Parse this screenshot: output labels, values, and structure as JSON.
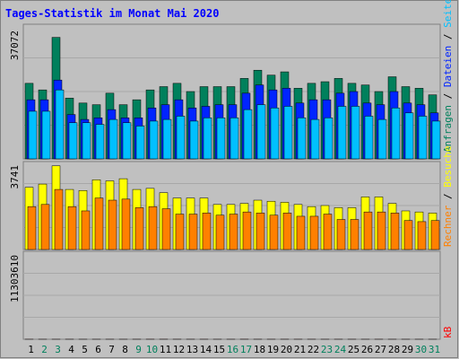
{
  "chart_data": [
    {
      "type": "bar",
      "title": "Tages-Statistik im Monat Mai 2020",
      "ytick": "37072",
      "ymax": 37072,
      "ylim": [
        0,
        41000
      ],
      "categories": [
        "1",
        "2",
        "3",
        "4",
        "5",
        "6",
        "7",
        "8",
        "9",
        "10",
        "11",
        "12",
        "13",
        "14",
        "15",
        "16",
        "17",
        "18",
        "19",
        "20",
        "21",
        "22",
        "23",
        "24",
        "25",
        "26",
        "27",
        "28",
        "29",
        "30",
        "31"
      ],
      "weekend_days": [
        "2",
        "3",
        "9",
        "10",
        "16",
        "17",
        "23",
        "24",
        "30",
        "31"
      ],
      "series": [
        {
          "name": "Anfragen",
          "values": [
            23000,
            21000,
            37000,
            18500,
            17000,
            16500,
            20000,
            16500,
            18000,
            21000,
            22000,
            23000,
            20500,
            22000,
            22000,
            22000,
            24500,
            27000,
            25500,
            26500,
            21500,
            23000,
            23500,
            24500,
            23000,
            22500,
            20500,
            25000,
            22000,
            21500,
            19500
          ]
        },
        {
          "name": "Dateien",
          "values": [
            18000,
            18000,
            24000,
            13500,
            12000,
            12500,
            15000,
            12500,
            12500,
            15500,
            16500,
            18000,
            15500,
            16000,
            16500,
            16500,
            20000,
            22500,
            21000,
            21500,
            17000,
            18000,
            18000,
            20000,
            20500,
            17000,
            16500,
            20500,
            17000,
            16500,
            14000
          ]
        },
        {
          "name": "Seiten",
          "values": [
            14500,
            14500,
            21000,
            11000,
            11000,
            10500,
            12000,
            11000,
            10000,
            11500,
            12000,
            13000,
            11500,
            12500,
            12500,
            12500,
            15000,
            16500,
            15500,
            16000,
            12500,
            12000,
            12500,
            16000,
            16000,
            13000,
            12000,
            15500,
            14000,
            13000,
            11500
          ]
        }
      ]
    },
    {
      "type": "bar",
      "ytick": "3741",
      "ymax": 3741,
      "ylim": [
        0,
        4100
      ],
      "categories": [
        "1",
        "2",
        "3",
        "4",
        "5",
        "6",
        "7",
        "8",
        "9",
        "10",
        "11",
        "12",
        "13",
        "14",
        "15",
        "16",
        "17",
        "18",
        "19",
        "20",
        "21",
        "22",
        "23",
        "24",
        "25",
        "26",
        "27",
        "28",
        "29",
        "30",
        "31"
      ],
      "series": [
        {
          "name": "Besuche",
          "values": [
            2900,
            3050,
            3900,
            2800,
            2750,
            3250,
            3200,
            3300,
            2800,
            2850,
            2650,
            2400,
            2400,
            2400,
            2100,
            2100,
            2150,
            2300,
            2250,
            2200,
            2100,
            2000,
            2050,
            1950,
            1950,
            2450,
            2450,
            2150,
            1800,
            1750,
            1700
          ]
        },
        {
          "name": "Rechner",
          "values": [
            2000,
            2100,
            2800,
            2000,
            1800,
            2400,
            2300,
            2350,
            1950,
            2000,
            1900,
            1650,
            1650,
            1700,
            1600,
            1650,
            1750,
            1700,
            1600,
            1700,
            1550,
            1550,
            1650,
            1400,
            1400,
            1750,
            1750,
            1700,
            1350,
            1300,
            1350
          ]
        }
      ]
    },
    {
      "type": "bar",
      "ytick": "11303610",
      "ymax": 11303610,
      "ylim": [
        0,
        12500000
      ],
      "categories": [
        "1",
        "2",
        "3",
        "4",
        "5",
        "6",
        "7",
        "8",
        "9",
        "10",
        "11",
        "12",
        "13",
        "14",
        "15",
        "16",
        "17",
        "18",
        "19",
        "20",
        "21",
        "22",
        "23",
        "24",
        "25",
        "26",
        "27",
        "28",
        "29",
        "30",
        "31"
      ],
      "series": [
        {
          "name": "kB",
          "values": [
            6600,
            5800,
            5900,
            8400,
            4600,
            5900,
            6200,
            5300,
            7000,
            9600,
            10600,
            8400,
            7000,
            6800,
            5600,
            5900,
            11000,
            7000,
            6200,
            8800,
            6500,
            6800,
            5800,
            6300,
            6200,
            5900,
            6500,
            5500,
            5500,
            4800,
            4600
          ]
        }
      ]
    }
  ],
  "legend": {
    "top": [
      "Anfragen",
      " / ",
      "Dateien",
      " / ",
      "Seiten"
    ],
    "mid": [
      "Besuche",
      " / ",
      "Rechner"
    ],
    "bottom": "kB"
  },
  "colors": {
    "background": "#c0c0c0",
    "title": "#0000ff",
    "anfragen": "#00805c",
    "dateien": "#0024ff",
    "seiten": "#00c0ff",
    "besuche": "#ffff00",
    "rechner": "#ff8000",
    "kb": "#ff0000",
    "weekend_label": "#00805c",
    "weekday_label": "#000000"
  }
}
